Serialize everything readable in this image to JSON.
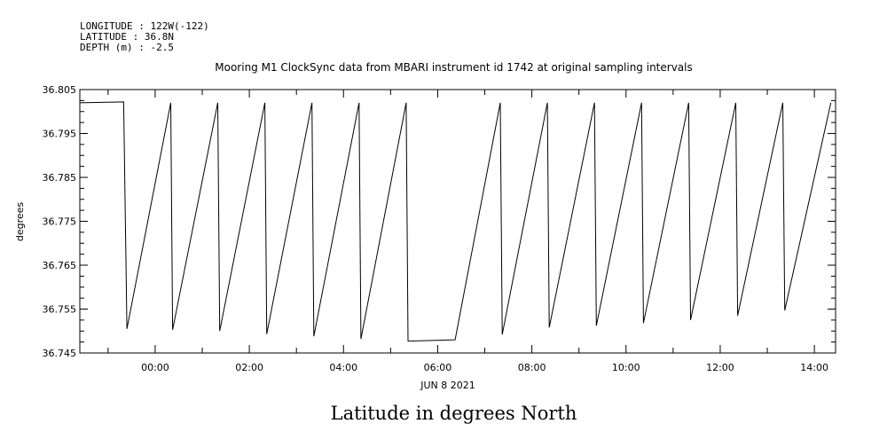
{
  "header": {
    "longitude": "LONGITUDE : 122W(-122)",
    "latitude": "LATITUDE : 36.8N",
    "depth": "DEPTH (m) : -2.5"
  },
  "caption": "Latitude in degrees North",
  "chart_data": {
    "type": "line",
    "title": "Mooring M1 ClockSync data from MBARI instrument id 1742 at original sampling intervals",
    "ylabel": "degrees",
    "xlabel": "JUN  8 2021",
    "ylim": [
      36.745,
      36.805
    ],
    "xlim_hours": [
      -1.6,
      14.45
    ],
    "y_ticks": [
      "36.805",
      "36.795",
      "36.785",
      "36.775",
      "36.765",
      "36.755",
      "36.745"
    ],
    "y_tick_values": [
      36.805,
      36.795,
      36.785,
      36.775,
      36.765,
      36.755,
      36.745
    ],
    "x_ticks": [
      "00:00",
      "02:00",
      "04:00",
      "06:00",
      "08:00",
      "10:00",
      "12:00",
      "14:00"
    ],
    "x_tick_hours": [
      0,
      2,
      4,
      6,
      8,
      10,
      12,
      14
    ],
    "series": [
      {
        "x_hours": [
          -1.6,
          -1.6,
          -0.67,
          -0.6,
          0.33,
          0.37,
          1.33,
          1.37,
          2.33,
          2.37,
          3.33,
          3.37,
          4.33,
          4.37,
          5.33,
          5.37,
          6.37,
          7.33,
          7.37,
          8.33,
          8.37,
          9.33,
          9.37,
          10.33,
          10.37,
          11.33,
          11.37,
          12.33,
          12.37,
          13.33,
          13.37,
          14.35
        ],
        "values": [
          36.777,
          36.802,
          36.8022,
          36.7505,
          36.802,
          36.7503,
          36.802,
          36.75,
          36.802,
          36.7493,
          36.802,
          36.7488,
          36.802,
          36.7482,
          36.802,
          36.7477,
          36.748,
          36.802,
          36.7492,
          36.802,
          36.7508,
          36.802,
          36.7512,
          36.802,
          36.7518,
          36.802,
          36.7525,
          36.802,
          36.7535,
          36.802,
          36.7547,
          36.802
        ]
      }
    ]
  }
}
